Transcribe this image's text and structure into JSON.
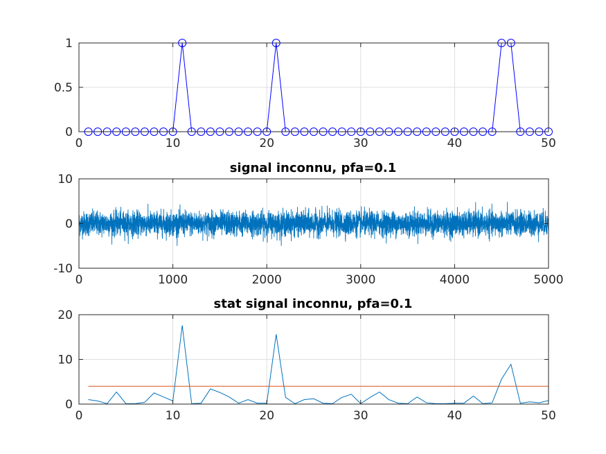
{
  "chart_data": [
    {
      "type": "line",
      "title": "",
      "xlabel": "",
      "ylabel": "",
      "xlim": [
        0,
        50
      ],
      "ylim": [
        0,
        1
      ],
      "xticks": [
        0,
        10,
        20,
        30,
        40,
        50
      ],
      "yticks": [
        0,
        0.5,
        1
      ],
      "xtick_labels": [
        "0",
        "10",
        "20",
        "30",
        "40",
        "50"
      ],
      "ytick_labels": [
        "0",
        "0.5",
        "1"
      ],
      "grid": true,
      "marker": "circle",
      "series": [
        {
          "color": "#0000ff",
          "x": [
            1,
            2,
            3,
            4,
            5,
            6,
            7,
            8,
            9,
            10,
            11,
            12,
            13,
            14,
            15,
            16,
            17,
            18,
            19,
            20,
            21,
            22,
            23,
            24,
            25,
            26,
            27,
            28,
            29,
            30,
            31,
            32,
            33,
            34,
            35,
            36,
            37,
            38,
            39,
            40,
            41,
            42,
            43,
            44,
            45,
            46,
            47,
            48,
            49,
            50
          ],
          "values": [
            0,
            0,
            0,
            0,
            0,
            0,
            0,
            0,
            0,
            0,
            1,
            0,
            0,
            0,
            0,
            0,
            0,
            0,
            0,
            0,
            1,
            0,
            0,
            0,
            0,
            0,
            0,
            0,
            0,
            0,
            0,
            0,
            0,
            0,
            0,
            0,
            0,
            0,
            0,
            0,
            0,
            0,
            0,
            0,
            1,
            1,
            0,
            0,
            0,
            0
          ]
        }
      ]
    },
    {
      "type": "line",
      "title": "signal inconnu, pfa=0.1",
      "xlabel": "",
      "ylabel": "",
      "xlim": [
        0,
        5000
      ],
      "ylim": [
        -10,
        10
      ],
      "xticks": [
        0,
        1000,
        2000,
        3000,
        4000,
        5000
      ],
      "yticks": [
        -10,
        0,
        10
      ],
      "xtick_labels": [
        "0",
        "1000",
        "2000",
        "3000",
        "4000",
        "5000"
      ],
      "ytick_labels": [
        "-10",
        "0",
        "10"
      ],
      "grid": true,
      "noise": {
        "n": 5000,
        "std": 1.35,
        "amplitude_range": [
          -5,
          5
        ]
      },
      "series": [
        {
          "color": "#0072bd"
        }
      ]
    },
    {
      "type": "line",
      "title": "stat signal inconnu, pfa=0.1",
      "xlabel": "",
      "ylabel": "",
      "xlim": [
        0,
        50
      ],
      "ylim": [
        0,
        20
      ],
      "xticks": [
        0,
        10,
        20,
        30,
        40,
        50
      ],
      "yticks": [
        0,
        10,
        20
      ],
      "xtick_labels": [
        "0",
        "10",
        "20",
        "30",
        "40",
        "50"
      ],
      "ytick_labels": [
        "0",
        "10",
        "20"
      ],
      "grid": true,
      "series": [
        {
          "color": "#0072bd",
          "x": [
            1,
            2,
            3,
            4,
            5,
            6,
            7,
            8,
            9,
            10,
            11,
            12,
            13,
            14,
            15,
            16,
            17,
            18,
            19,
            20,
            21,
            22,
            23,
            24,
            25,
            26,
            27,
            28,
            29,
            30,
            31,
            32,
            33,
            34,
            35,
            36,
            37,
            38,
            39,
            40,
            41,
            42,
            43,
            44,
            45,
            46,
            47,
            48,
            49,
            50
          ],
          "values": [
            1.0,
            0.7,
            0.1,
            2.7,
            0.1,
            0.1,
            0.4,
            2.5,
            1.6,
            0.7,
            17.6,
            0.1,
            0.2,
            3.4,
            2.6,
            1.6,
            0.2,
            1.0,
            0.2,
            0.2,
            15.6,
            1.5,
            0.1,
            1.0,
            1.2,
            0.2,
            0.1,
            1.5,
            2.2,
            0.1,
            1.5,
            2.7,
            1.0,
            0.2,
            0.1,
            1.6,
            0.3,
            0.1,
            0.1,
            0.2,
            0.2,
            1.8,
            0.1,
            0.3,
            5.6,
            8.9,
            0.2,
            0.5,
            0.3,
            0.8
          ]
        },
        {
          "color": "#d95319",
          "x": [
            1,
            50
          ],
          "values": [
            4.0,
            4.0
          ]
        }
      ]
    }
  ]
}
